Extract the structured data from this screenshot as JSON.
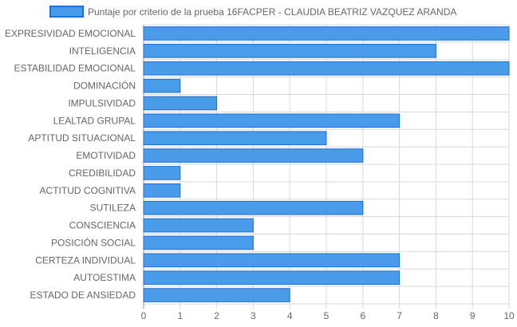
{
  "chart_data": {
    "type": "bar",
    "orientation": "horizontal",
    "legend": {
      "position": "top",
      "label": "Puntaje por criterio de la prueba 16FACPER - CLAUDIA BEATRIZ VAZQUEZ ARANDA"
    },
    "categories": [
      "EXPRESIVIDAD EMOCIONAL",
      "INTELIGENCIA",
      "ESTABILIDAD EMOCIONAL",
      "DOMINACIÓN",
      "IMPULSIVIDAD",
      "LEALTAD GRUPAL",
      "APTITUD SITUACIONAL",
      "EMOTIVIDAD",
      "CREDIBILIDAD",
      "ACTITUD COGNITIVA",
      "SUTILEZA",
      "CONSCIENCIA",
      "POSICIÓN SOCIAL",
      "CERTEZA INDIVIDUAL",
      "AUTOESTIMA",
      "ESTADO DE ANSIEDAD"
    ],
    "series": [
      {
        "name": "Puntaje por criterio de la prueba 16FACPER - CLAUDIA BEATRIZ VAZQUEZ ARANDA",
        "values": [
          10,
          8,
          10,
          1,
          2,
          7,
          5,
          6,
          1,
          1,
          6,
          3,
          3,
          7,
          7,
          4
        ]
      }
    ],
    "xlim": [
      0,
      10
    ],
    "xticks": [
      0,
      1,
      2,
      3,
      4,
      5,
      6,
      7,
      8,
      9,
      10
    ],
    "grid": true,
    "colors": {
      "bar_fill": "#4a9bea",
      "bar_stroke": "#1b6fd6",
      "grid": "#d9d9d9",
      "text": "#666666"
    }
  }
}
